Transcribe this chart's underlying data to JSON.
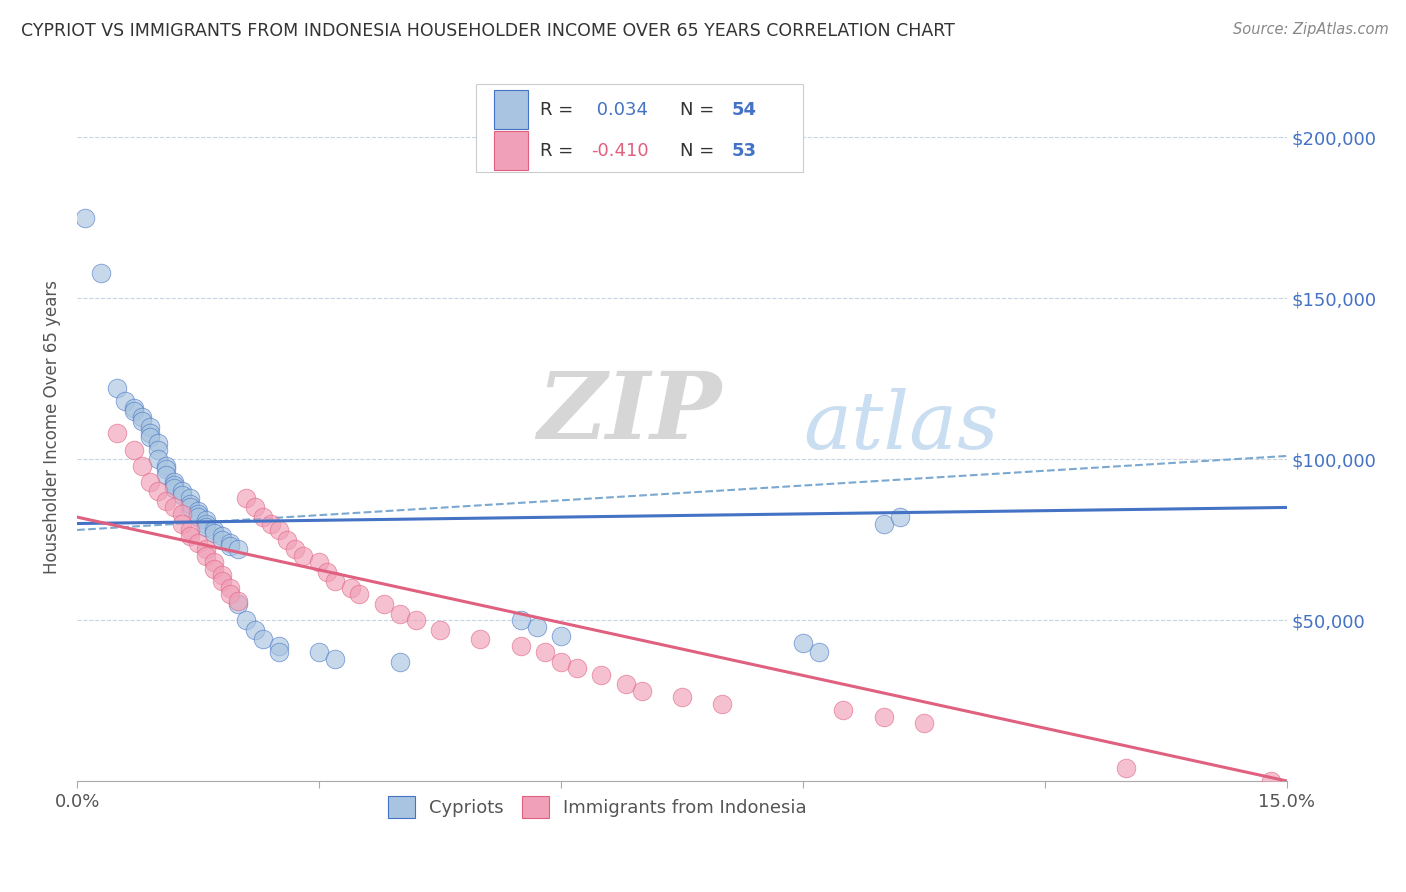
{
  "title": "CYPRIOT VS IMMIGRANTS FROM INDONESIA HOUSEHOLDER INCOME OVER 65 YEARS CORRELATION CHART",
  "source": "Source: ZipAtlas.com",
  "ylabel": "Householder Income Over 65 years",
  "xlim": [
    0.0,
    0.15
  ],
  "ylim": [
    0,
    220000
  ],
  "legend1_label": "Cypriots",
  "legend2_label": "Immigrants from Indonesia",
  "R1": 0.034,
  "N1": 54,
  "R2": -0.41,
  "N2": 53,
  "color_blue": "#a8c4e0",
  "color_pink": "#f0a0b8",
  "line_blue": "#4472c4",
  "line_pink": "#e06080",
  "line_dashed_color": "#7aa8d0",
  "blue_line_y0": 80000,
  "blue_line_y1": 85000,
  "pink_line_y0": 82000,
  "pink_line_y1": 0,
  "dash_line_y0": 78000,
  "dash_line_y1": 101000,
  "blue_points_x": [
    0.001,
    0.003,
    0.005,
    0.006,
    0.007,
    0.007,
    0.008,
    0.008,
    0.009,
    0.009,
    0.009,
    0.01,
    0.01,
    0.01,
    0.011,
    0.011,
    0.011,
    0.012,
    0.012,
    0.012,
    0.013,
    0.013,
    0.014,
    0.014,
    0.014,
    0.015,
    0.015,
    0.015,
    0.016,
    0.016,
    0.016,
    0.017,
    0.017,
    0.018,
    0.018,
    0.019,
    0.019,
    0.02,
    0.02,
    0.021,
    0.022,
    0.023,
    0.025,
    0.025,
    0.03,
    0.032,
    0.04,
    0.055,
    0.057,
    0.06,
    0.09,
    0.092,
    0.1,
    0.102
  ],
  "blue_points_y": [
    175000,
    158000,
    122000,
    118000,
    116000,
    115000,
    113000,
    112000,
    110000,
    108000,
    107000,
    105000,
    103000,
    100000,
    98000,
    97000,
    95000,
    93000,
    92000,
    91000,
    90000,
    89000,
    88000,
    86000,
    85000,
    84000,
    83000,
    82000,
    81000,
    80000,
    79000,
    78000,
    77000,
    76000,
    75000,
    74000,
    73000,
    72000,
    55000,
    50000,
    47000,
    44000,
    42000,
    40000,
    40000,
    38000,
    37000,
    50000,
    48000,
    45000,
    43000,
    40000,
    80000,
    82000
  ],
  "pink_points_x": [
    0.005,
    0.007,
    0.008,
    0.009,
    0.01,
    0.011,
    0.012,
    0.013,
    0.013,
    0.014,
    0.014,
    0.015,
    0.016,
    0.016,
    0.017,
    0.017,
    0.018,
    0.018,
    0.019,
    0.019,
    0.02,
    0.021,
    0.022,
    0.023,
    0.024,
    0.025,
    0.026,
    0.027,
    0.028,
    0.03,
    0.031,
    0.032,
    0.034,
    0.035,
    0.038,
    0.04,
    0.042,
    0.045,
    0.05,
    0.055,
    0.058,
    0.06,
    0.062,
    0.065,
    0.068,
    0.07,
    0.075,
    0.08,
    0.095,
    0.1,
    0.105,
    0.13,
    0.148
  ],
  "pink_points_y": [
    108000,
    103000,
    98000,
    93000,
    90000,
    87000,
    85000,
    83000,
    80000,
    78000,
    76000,
    74000,
    72000,
    70000,
    68000,
    66000,
    64000,
    62000,
    60000,
    58000,
    56000,
    88000,
    85000,
    82000,
    80000,
    78000,
    75000,
    72000,
    70000,
    68000,
    65000,
    62000,
    60000,
    58000,
    55000,
    52000,
    50000,
    47000,
    44000,
    42000,
    40000,
    37000,
    35000,
    33000,
    30000,
    28000,
    26000,
    24000,
    22000,
    20000,
    18000,
    4000,
    0
  ]
}
